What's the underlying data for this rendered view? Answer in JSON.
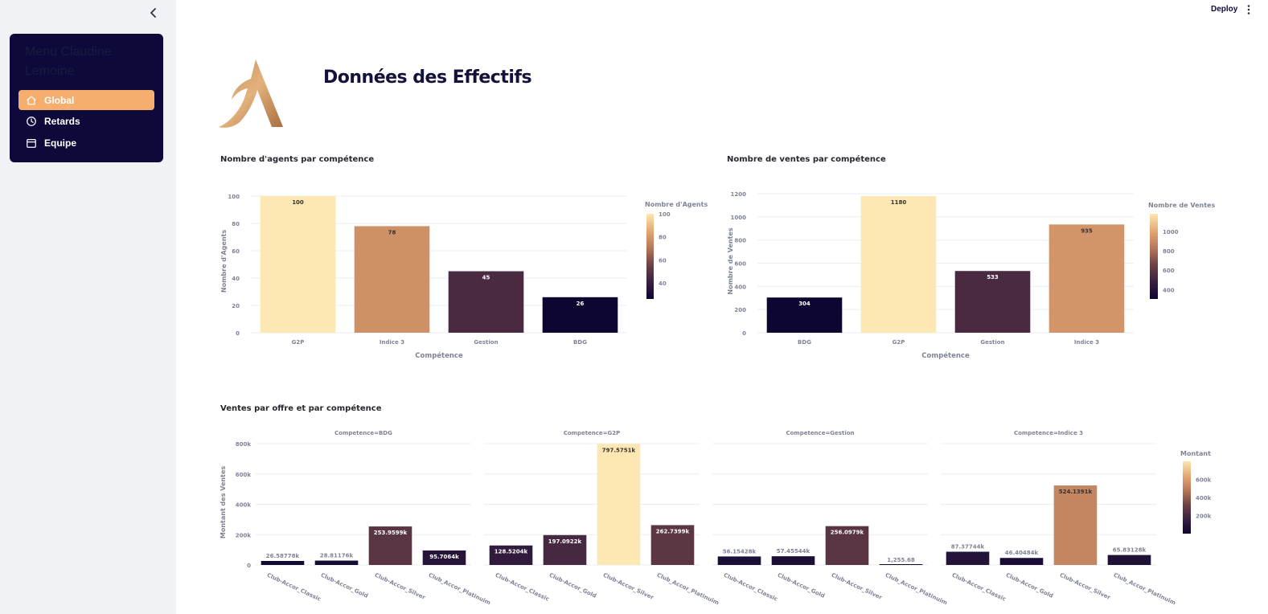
{
  "sidebar": {
    "collapse_icon": "chevron-left-icon",
    "menu_title": "Menu Claudine Lemoine",
    "items": [
      {
        "label": "Global",
        "icon": "home-icon",
        "active": true
      },
      {
        "label": "Retards",
        "icon": "clock-icon",
        "active": false
      },
      {
        "label": "Equipe",
        "icon": "calendar-icon",
        "active": false
      }
    ]
  },
  "header": {
    "deploy_label": "Deploy",
    "menu_icon": "kebab-menu-icon"
  },
  "main": {
    "title": "Données des Effectifs",
    "logo": "accor-logo"
  },
  "colors": {
    "sidebar_bg": "#f0f2f6",
    "menu_bg": "#0d0a3b",
    "active_item": "#f6ae6f",
    "colorscale": [
      "#0c0630",
      "#3a2040",
      "#6e4244",
      "#b7775a",
      "#e4a872",
      "#fde7b2"
    ]
  },
  "chart_data": [
    {
      "type": "bar",
      "title": "Nombre d'agents par compétence",
      "categories": [
        "G2P",
        "Indice 3",
        "Gestion",
        "BDG"
      ],
      "values": [
        100,
        78,
        45,
        26
      ],
      "data_labels": [
        "100",
        "78",
        "45",
        "26"
      ],
      "xlabel": "Compétence",
      "ylabel": "Nombre d'Agents",
      "ylim": [
        0,
        100
      ],
      "yticks": [
        0,
        20,
        40,
        60,
        80,
        100
      ],
      "grid": true,
      "colorbar": {
        "title": "Nombre d'Agents",
        "range": [
          26,
          100
        ],
        "ticks": [
          40,
          60,
          80,
          100
        ]
      }
    },
    {
      "type": "bar",
      "title": "Nombre de ventes par compétence",
      "categories": [
        "BDG",
        "G2P",
        "Gestion",
        "Indice 3"
      ],
      "values": [
        304,
        1180,
        533,
        935
      ],
      "data_labels": [
        "304",
        "1180",
        "533",
        "935"
      ],
      "xlabel": "Compétence",
      "ylabel": "Nombre de Ventes",
      "ylim": [
        0,
        1180
      ],
      "yticks": [
        0,
        200,
        400,
        600,
        800,
        1000,
        1200
      ],
      "grid": true,
      "colorbar": {
        "title": "Nombre de Ventes",
        "range": [
          304,
          1180
        ],
        "ticks": [
          400,
          600,
          800,
          1000
        ]
      }
    },
    {
      "type": "bar",
      "title": "Ventes par offre et par compétence",
      "ylabel": "Montant des Ventes",
      "ylim": [
        0,
        797575.1
      ],
      "yticks": [
        0,
        200000,
        400000,
        600000,
        800000
      ],
      "ytick_labels": [
        "0",
        "200k",
        "400k",
        "600k",
        "800k"
      ],
      "grid": true,
      "categories": [
        "Club-Accor_Classic",
        "Club-Accor_Gold",
        "Club-Accor_Silver",
        "Club_Accor_Platinuim"
      ],
      "panels": [
        {
          "name": "Competence=BDG",
          "values": [
            26587.78,
            28811.76,
            253959.9,
            95706.4
          ],
          "data_labels": [
            "26.58778k",
            "28.81176k",
            "253.9599k",
            "95.7064k"
          ]
        },
        {
          "name": "Competence=G2P",
          "values": [
            128520.4,
            197092.2,
            797575.1,
            262739.9
          ],
          "data_labels": [
            "128.5204k",
            "197.0922k",
            "797.5751k",
            "262.7399k"
          ]
        },
        {
          "name": "Competence=Gestion",
          "values": [
            56154.28,
            57455.44,
            256097.9,
            1255.68
          ],
          "data_labels": [
            "56.15428k",
            "57.45544k",
            "256.0979k",
            "1,255.68"
          ]
        },
        {
          "name": "Competence=Indice 3",
          "values": [
            87377.44,
            46404.84,
            524139.1,
            65831.28
          ],
          "data_labels": [
            "87.37744k",
            "46.40484k",
            "524.1391k",
            "65.83128k"
          ]
        }
      ],
      "colorbar": {
        "title": "Montant",
        "range": [
          1255.68,
          797575.1
        ],
        "ticks": [
          200000,
          400000,
          600000
        ],
        "tick_labels": [
          "200k",
          "400k",
          "600k"
        ]
      }
    }
  ]
}
